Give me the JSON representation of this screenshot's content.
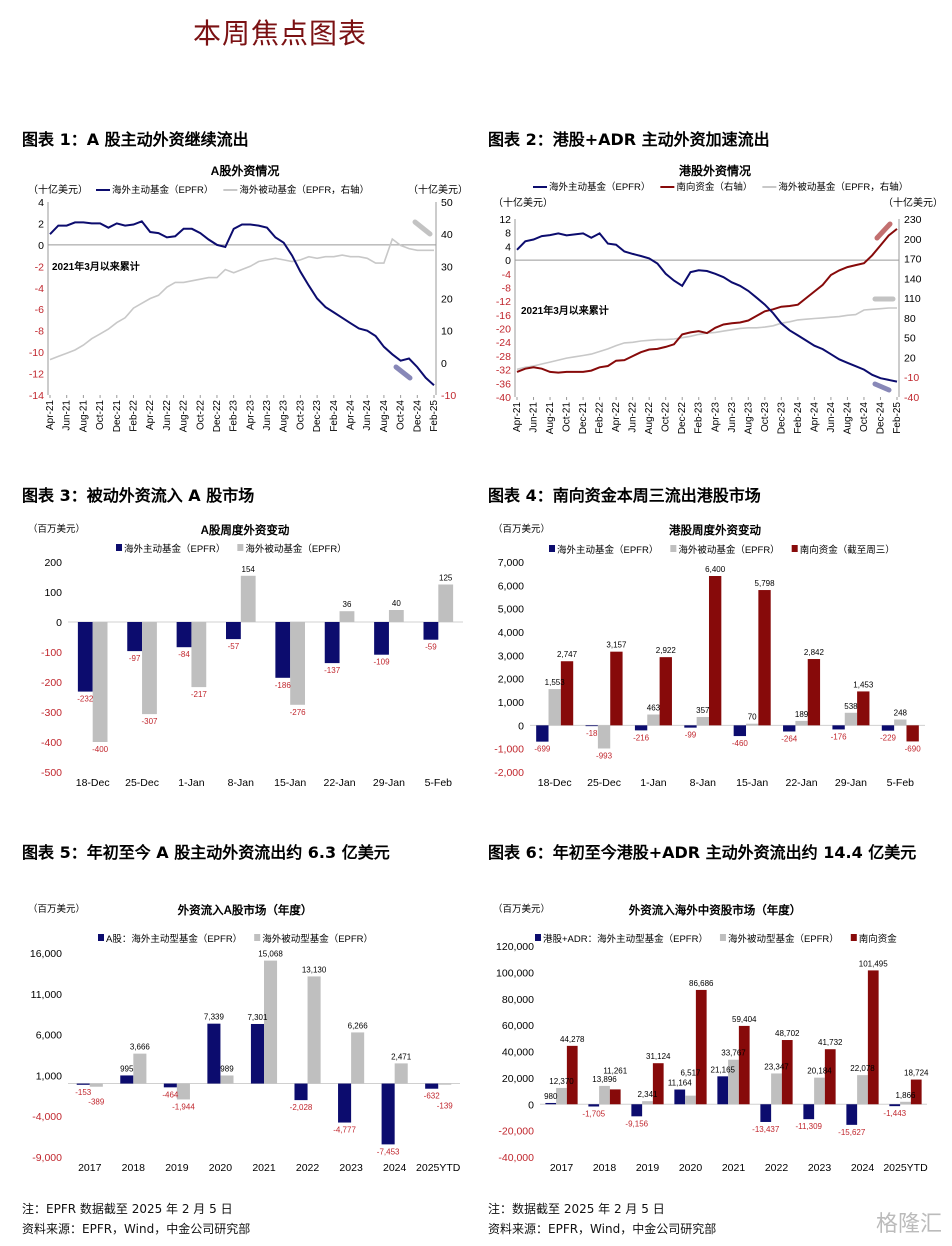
{
  "page_title": "本周焦点图表",
  "sections": [
    {
      "title": "图表 1：A 股主动外资继续流出"
    },
    {
      "title": "图表 2：港股+ADR 主动外资加速流出"
    },
    {
      "title": "图表 3：被动外资流入 A 股市场"
    },
    {
      "title": "图表 4：南向资金本周三流出港股市场"
    },
    {
      "title": "图表 5：年初至今 A 股主动外资流出约 6.3 亿美元"
    },
    {
      "title": "图表 6：年初至今港股+ADR 主动外资流出约 14.4 亿美元"
    }
  ],
  "notes": {
    "left_note": "注：EPFR 数据截至 2025 年 2 月 5 日",
    "left_source": "资料来源：EPFR，Wind，中金公司研究部",
    "right_note": "注：数据截至 2025 年 2 月 5 日",
    "right_source": "资料来源：EPFR，Wind，中金公司研究部",
    "watermark": "格隆汇"
  },
  "colors": {
    "active": "#0c0c6e",
    "passive": "#bfbfbf",
    "southbound": "#870a0a",
    "negative_label": "#c0262d",
    "title_red": "#7b1113"
  },
  "chart_data": [
    {
      "type": "line",
      "title": "A股外资情况",
      "unit_left": "（十亿美元）",
      "unit_right": "（十亿美元）",
      "annotation": "2021年3月以来累计",
      "x_labels": [
        "Apr-21",
        "Jun-21",
        "Aug-21",
        "Oct-21",
        "Dec-21",
        "Feb-22",
        "Apr-22",
        "Jun-22",
        "Aug-22",
        "Oct-22",
        "Dec-22",
        "Feb-23",
        "Apr-23",
        "Jun-23",
        "Aug-23",
        "Oct-23",
        "Dec-23",
        "Feb-24",
        "Apr-24",
        "Jun-24",
        "Aug-24",
        "Oct-24",
        "Dec-24",
        "Feb-25"
      ],
      "y_left": {
        "min": -14,
        "max": 4,
        "step": 2
      },
      "y_right": {
        "min": -10,
        "max": 50,
        "step": 10
      },
      "series": [
        {
          "name": "海外主动基金（EPFR）",
          "axis": "left",
          "color": "#0c0c6e",
          "values": [
            1.0,
            1.8,
            1.8,
            2.1,
            2.1,
            2.0,
            2.0,
            1.6,
            2.0,
            1.8,
            1.9,
            2.2,
            1.2,
            1.1,
            0.7,
            0.8,
            1.5,
            1.5,
            1.1,
            0.5,
            0.0,
            -0.2,
            1.5,
            1.9,
            1.9,
            1.8,
            1.6,
            0.7,
            0.2,
            -1.0,
            -2.5,
            -3.8,
            -5.0,
            -5.8,
            -6.3,
            -6.8,
            -7.3,
            -7.8,
            -8.0,
            -8.5,
            -9.5,
            -10.2,
            -10.8,
            -10.6,
            -11.4,
            -12.4,
            -13.1
          ]
        },
        {
          "name": "海外被动基金（EPFR，右轴）",
          "axis": "right",
          "color": "#c8c8c8",
          "values": [
            1,
            2,
            3,
            4,
            5.5,
            7.5,
            9,
            10.5,
            12.5,
            14,
            17,
            18.5,
            20,
            21,
            23.5,
            25,
            25,
            25.5,
            26,
            26.5,
            26.5,
            29,
            28,
            29,
            30,
            31.5,
            32,
            32.5,
            32,
            31.5,
            32,
            33,
            32.5,
            33,
            33,
            33.5,
            33,
            33,
            32.5,
            31,
            31,
            38.5,
            36.5,
            35.5,
            35,
            35,
            35
          ]
        }
      ]
    },
    {
      "type": "line",
      "title": "港股外资情况",
      "unit_left": "（十亿美元）",
      "unit_right": "（十亿美元）",
      "annotation": "2021年3月以来累计",
      "x_labels": [
        "Apr-21",
        "Jun-21",
        "Aug-21",
        "Oct-21",
        "Dec-21",
        "Feb-22",
        "Apr-22",
        "Jun-22",
        "Aug-22",
        "Oct-22",
        "Dec-22",
        "Feb-23",
        "Apr-23",
        "Jun-23",
        "Aug-23",
        "Oct-23",
        "Dec-23",
        "Feb-24",
        "Apr-24",
        "Jun-24",
        "Aug-24",
        "Oct-24",
        "Dec-24",
        "Feb-25"
      ],
      "y_left": {
        "min": -40,
        "max": 12,
        "step": 4
      },
      "y_right": {
        "min": -40,
        "max": 230,
        "step": 30
      },
      "series": [
        {
          "name": "海外主动基金（EPFR）",
          "axis": "left",
          "color": "#0c0c6e",
          "values": [
            3,
            5.5,
            6,
            7,
            7.3,
            7.8,
            7.2,
            7.5,
            7.8,
            6.5,
            7.8,
            4.8,
            4.5,
            2.5,
            1.8,
            1.2,
            0.5,
            -1,
            -4,
            -6,
            -7.5,
            -3.5,
            -3,
            -3.2,
            -4,
            -5,
            -6.5,
            -7.5,
            -9,
            -11,
            -13,
            -15.5,
            -18.5,
            -20.5,
            -22,
            -23.5,
            -25,
            -26,
            -27.5,
            -29,
            -30,
            -31,
            -32,
            -33.5,
            -34.5,
            -35,
            -35.5
          ]
        },
        {
          "name": "南向资金（右轴）",
          "axis": "right",
          "color": "#870a0a",
          "values": [
            -2,
            3,
            5,
            3,
            -2,
            -3,
            -2,
            -2,
            -2,
            0,
            5,
            7,
            15,
            16,
            22,
            28,
            32,
            33,
            36,
            40,
            55,
            58,
            60,
            57,
            65,
            70,
            72,
            73,
            76,
            83,
            90,
            93,
            97,
            98,
            100,
            110,
            120,
            130,
            145,
            152,
            157,
            160,
            163,
            175,
            190,
            205,
            215
          ]
        },
        {
          "name": "海外被动基金（EPFR，右轴）",
          "axis": "right",
          "color": "#c8c8c8",
          "values": [
            2,
            5,
            7,
            10,
            13,
            16,
            19,
            21,
            23,
            25,
            29,
            33,
            38,
            42,
            43,
            45,
            46,
            47,
            47,
            48,
            50,
            52,
            55,
            57,
            58,
            60,
            62,
            64,
            65,
            65,
            66,
            68,
            72,
            74,
            77,
            78,
            79,
            80,
            81,
            82,
            84,
            85,
            92,
            93,
            94,
            95,
            95
          ]
        }
      ]
    },
    {
      "type": "bar",
      "title": "A股周度外资变动",
      "unit": "（百万美元）",
      "categories": [
        "18-Dec",
        "25-Dec",
        "1-Jan",
        "8-Jan",
        "15-Jan",
        "22-Jan",
        "29-Jan",
        "5-Feb"
      ],
      "ylim": [
        -500,
        200
      ],
      "ystep": 100,
      "series": [
        {
          "name": "海外主动基金（EPFR）",
          "color": "#0c0c6e",
          "values": [
            -232,
            -97,
            -84,
            -57,
            -186,
            -137,
            -109,
            -59
          ]
        },
        {
          "name": "海外被动基金（EPFR）",
          "color": "#bfbfbf",
          "values": [
            -400,
            -307,
            -217,
            154,
            -276,
            36,
            40,
            125
          ]
        }
      ]
    },
    {
      "type": "bar",
      "title": "港股周度外资变动",
      "unit": "（百万美元）",
      "categories": [
        "18-Dec",
        "25-Dec",
        "1-Jan",
        "8-Jan",
        "15-Jan",
        "22-Jan",
        "29-Jan",
        "5-Feb"
      ],
      "ylim": [
        -2000,
        7000
      ],
      "ystep": 1000,
      "series": [
        {
          "name": "海外主动基金（EPFR）",
          "color": "#0c0c6e",
          "values": [
            -699,
            -18,
            -216,
            -99,
            -460,
            -264,
            -176,
            -229
          ]
        },
        {
          "name": "海外被动基金（EPFR）",
          "color": "#bfbfbf",
          "values": [
            1553,
            -993,
            463,
            357,
            70,
            189,
            538,
            248
          ]
        },
        {
          "name": "南向资金（截至周三）",
          "color": "#870a0a",
          "values": [
            2747,
            3157,
            2922,
            6400,
            5798,
            2842,
            1453,
            -690
          ]
        }
      ]
    },
    {
      "type": "bar",
      "title": "外资流入A股市场（年度）",
      "unit": "（百万美元）",
      "categories": [
        "2017",
        "2018",
        "2019",
        "2020",
        "2021",
        "2022",
        "2023",
        "2024",
        "2025YTD"
      ],
      "ylim": [
        -9000,
        16000
      ],
      "ystep": 5000,
      "series": [
        {
          "name": "A股：海外主动型基金（EPFR）",
          "color": "#0c0c6e",
          "values": [
            -153,
            995,
            -464,
            7339,
            7301,
            -2028,
            -4777,
            -7453,
            -632
          ]
        },
        {
          "name": "海外被动型基金（EPFR）",
          "color": "#bfbfbf",
          "values": [
            -389,
            3666,
            -1944,
            989,
            15068,
            13130,
            6266,
            2471,
            -139
          ]
        }
      ]
    },
    {
      "type": "bar",
      "title": "外资流入海外中资股市场（年度）",
      "unit": "（百万美元）",
      "categories": [
        "2017",
        "2018",
        "2019",
        "2020",
        "2021",
        "2022",
        "2023",
        "2024",
        "2025YTD"
      ],
      "ylim": [
        -40000,
        120000
      ],
      "ystep": 20000,
      "series": [
        {
          "name": "港股+ADR：海外主动型基金（EPFR）",
          "color": "#0c0c6e",
          "values": [
            980,
            -1705,
            -9156,
            11164,
            21165,
            -13437,
            -11309,
            -15627,
            -1443
          ]
        },
        {
          "name": "海外被动型基金（EPFR）",
          "color": "#bfbfbf",
          "values": [
            12370,
            13896,
            2341,
            6517,
            33767,
            23347,
            20184,
            22078,
            1866
          ]
        },
        {
          "name": "南向资金",
          "color": "#870a0a",
          "values": [
            44278,
            11261,
            31124,
            86686,
            59404,
            48702,
            41732,
            101495,
            18724
          ]
        }
      ]
    }
  ]
}
